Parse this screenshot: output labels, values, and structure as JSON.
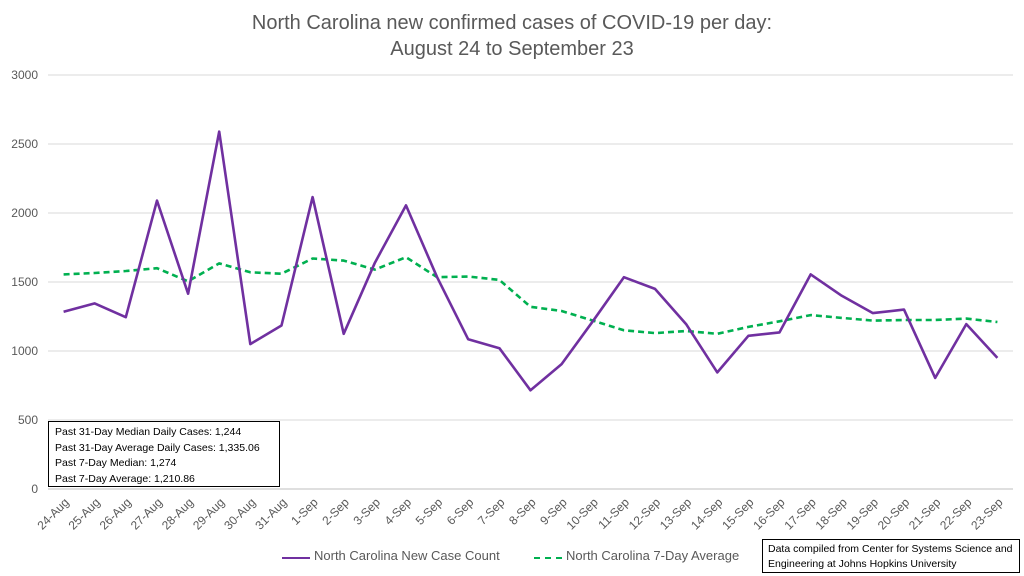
{
  "title_line1": "North Carolina new confirmed cases of COVID-19 per day:",
  "title_line2": "August 24 to September 23",
  "chart_data": {
    "type": "line",
    "title": "North Carolina new confirmed cases of COVID-19 per day: August 24 to September 23",
    "categories": [
      "24-Aug",
      "25-Aug",
      "26-Aug",
      "27-Aug",
      "28-Aug",
      "29-Aug",
      "30-Aug",
      "31-Aug",
      "1-Sep",
      "2-Sep",
      "3-Sep",
      "4-Sep",
      "5-Sep",
      "6-Sep",
      "7-Sep",
      "8-Sep",
      "9-Sep",
      "10-Sep",
      "11-Sep",
      "12-Sep",
      "13-Sep",
      "14-Sep",
      "15-Sep",
      "16-Sep",
      "17-Sep",
      "18-Sep",
      "19-Sep",
      "20-Sep",
      "21-Sep",
      "22-Sep",
      "23-Sep"
    ],
    "series": [
      {
        "name": "North Carolina New Case Count",
        "color": "#7030a0",
        "style": "solid",
        "values": [
          1285,
          1345,
          1245,
          2090,
          1415,
          2590,
          1050,
          1185,
          2115,
          1125,
          1640,
          2055,
          1535,
          1085,
          1020,
          715,
          905,
          1215,
          1535,
          1450,
          1195,
          845,
          1110,
          1135,
          1555,
          1400,
          1275,
          1300,
          805,
          1195,
          950
        ]
      },
      {
        "name": "North Carolina 7-Day Average",
        "color": "#00b050",
        "style": "dashed",
        "values": [
          1555,
          1565,
          1580,
          1600,
          1505,
          1635,
          1570,
          1560,
          1670,
          1655,
          1590,
          1680,
          1535,
          1540,
          1515,
          1320,
          1290,
          1220,
          1150,
          1130,
          1145,
          1125,
          1175,
          1215,
          1260,
          1240,
          1220,
          1225,
          1225,
          1235,
          1210
        ]
      }
    ],
    "xlabel": "",
    "ylabel": "",
    "ylim": [
      0,
      3000
    ],
    "yticks": [
      0,
      500,
      1000,
      1500,
      2000,
      2500,
      3000
    ],
    "grid": true,
    "legend": "bottom"
  },
  "stats": {
    "line1": "Past 31-Day Median Daily Cases: 1,244",
    "line2": "Past 31-Day Average Daily Cases: 1,335.06",
    "line3": "Past 7-Day Median: 1,274",
    "line4": "Past 7-Day Average: 1,210.86"
  },
  "source": {
    "line1": "Data compiled from Center for Systems Science and",
    "line2": "Engineering at Johns Hopkins University"
  }
}
